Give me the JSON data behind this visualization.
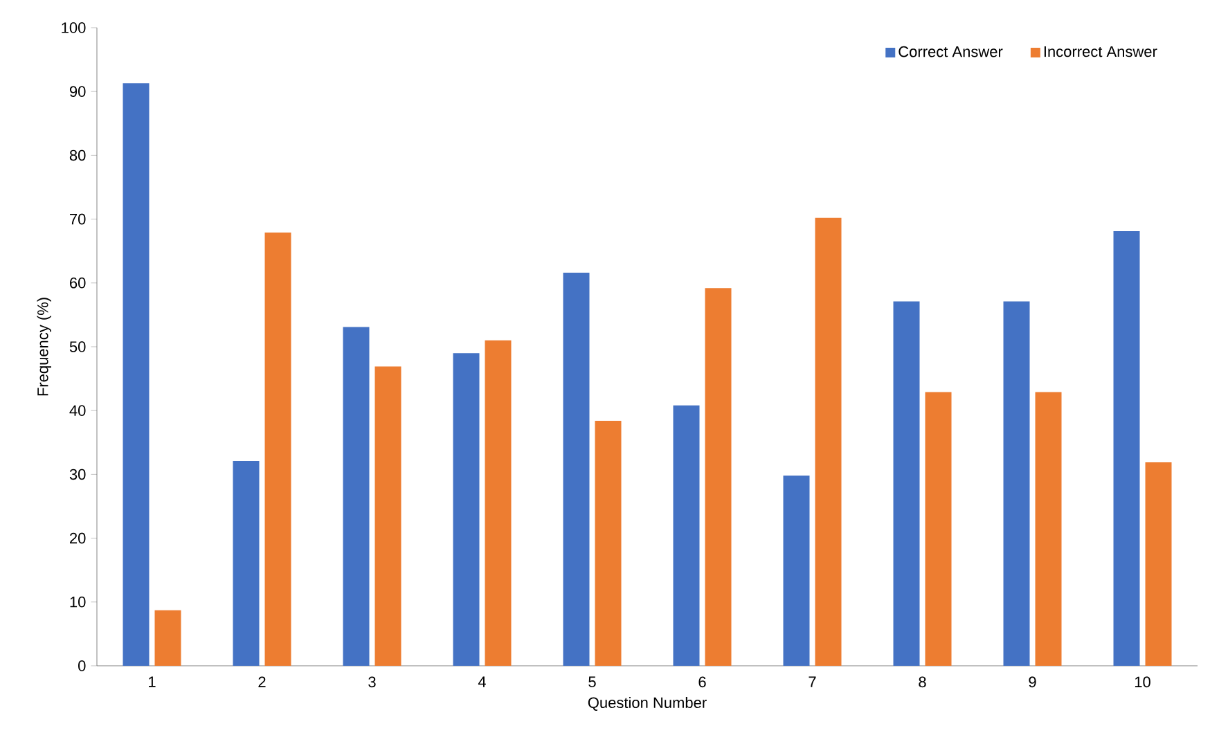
{
  "chart_data": {
    "type": "bar",
    "xlabel": "Question Number",
    "ylabel": "Frequency (%)",
    "categories": [
      "1",
      "2",
      "3",
      "4",
      "5",
      "6",
      "7",
      "8",
      "9",
      "10"
    ],
    "series": [
      {
        "name": "Correct Answer",
        "color": "#4472c4",
        "values": [
          91.3,
          32.1,
          53.1,
          49,
          61.6,
          40.8,
          29.8,
          57.1,
          57.1,
          68.1
        ]
      },
      {
        "name": "Incorrect Answer",
        "color": "#ed7d31",
        "values": [
          8.7,
          67.9,
          46.9,
          51,
          38.4,
          59.2,
          70.2,
          42.9,
          42.9,
          31.9
        ]
      }
    ],
    "ylim": [
      0,
      100
    ],
    "yticks": [
      0,
      10,
      20,
      30,
      40,
      50,
      60,
      70,
      80,
      90,
      100
    ],
    "grid": false,
    "legend": "top right"
  }
}
